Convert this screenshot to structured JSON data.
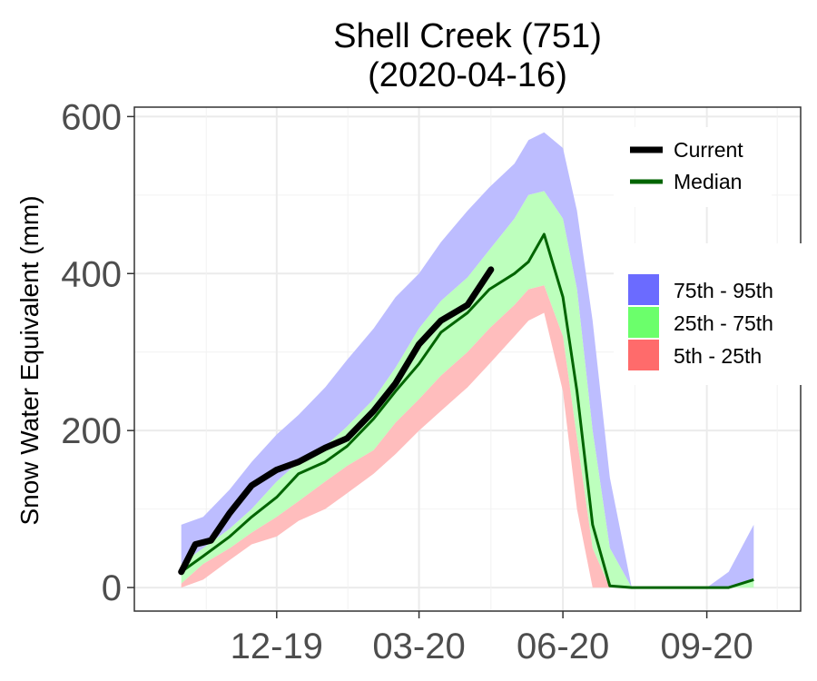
{
  "chart_data": {
    "type": "area",
    "title": "Shell Creek (751)",
    "subtitle": "(2020-04-16)",
    "xlabel": "",
    "ylabel": "Snow Water Equivalent (mm)",
    "x_ticks": [
      "12-19",
      "03-20",
      "06-20",
      "09-20"
    ],
    "y_ticks": [
      0,
      200,
      400,
      600
    ],
    "ylim": [
      -30,
      612
    ],
    "grid": true,
    "legend_lines": [
      {
        "name": "Current",
        "color": "#000000"
      },
      {
        "name": "Median",
        "color": "#006400"
      }
    ],
    "legend_bands": [
      {
        "name": "75th - 95th",
        "color": "#6b6bff"
      },
      {
        "name": "25th - 75th",
        "color": "#6bff6b"
      },
      {
        "name": "5th - 25th",
        "color": "#ff6b6b"
      }
    ],
    "x": [
      "2019-10-01",
      "2019-10-15",
      "2019-11-01",
      "2019-11-15",
      "2019-12-01",
      "2019-12-15",
      "2020-01-01",
      "2020-01-15",
      "2020-02-01",
      "2020-02-15",
      "2020-03-01",
      "2020-03-15",
      "2020-04-01",
      "2020-04-15",
      "2020-05-01",
      "2020-05-10",
      "2020-05-20",
      "2020-06-01",
      "2020-06-10",
      "2020-06-20",
      "2020-07-01",
      "2020-07-15",
      "2020-08-01",
      "2020-08-15",
      "2020-09-01",
      "2020-09-15",
      "2020-10-01"
    ],
    "series": [
      {
        "name": "95th",
        "values": [
          80,
          90,
          125,
          160,
          195,
          220,
          255,
          290,
          330,
          370,
          400,
          440,
          480,
          510,
          540,
          570,
          580,
          560,
          480,
          340,
          140,
          0,
          0,
          0,
          0,
          20,
          80
        ]
      },
      {
        "name": "75th",
        "values": [
          30,
          50,
          75,
          100,
          135,
          160,
          180,
          205,
          240,
          280,
          330,
          365,
          395,
          430,
          470,
          500,
          505,
          470,
          380,
          200,
          50,
          0,
          0,
          0,
          0,
          0,
          10
        ]
      },
      {
        "name": "Median",
        "values": [
          20,
          40,
          65,
          90,
          115,
          145,
          160,
          180,
          215,
          250,
          285,
          325,
          350,
          380,
          400,
          415,
          450,
          370,
          250,
          80,
          2,
          0,
          0,
          0,
          0,
          0,
          10
        ]
      },
      {
        "name": "25th",
        "values": [
          5,
          30,
          50,
          70,
          90,
          110,
          135,
          155,
          175,
          210,
          240,
          270,
          300,
          330,
          360,
          380,
          385,
          320,
          190,
          50,
          0,
          0,
          0,
          0,
          0,
          0,
          0
        ]
      },
      {
        "name": "5th",
        "values": [
          0,
          10,
          35,
          55,
          65,
          85,
          100,
          120,
          145,
          170,
          200,
          225,
          255,
          285,
          320,
          340,
          350,
          250,
          100,
          0,
          0,
          0,
          0,
          0,
          0,
          0,
          0
        ]
      },
      {
        "name": "Current",
        "x": [
          "2019-10-01",
          "2019-10-10",
          "2019-10-20",
          "2019-11-01",
          "2019-11-15",
          "2019-12-01",
          "2019-12-15",
          "2020-01-01",
          "2020-01-15",
          "2020-02-01",
          "2020-02-15",
          "2020-03-01",
          "2020-03-15",
          "2020-04-01",
          "2020-04-16"
        ],
        "values": [
          20,
          55,
          60,
          95,
          130,
          150,
          160,
          178,
          190,
          225,
          260,
          310,
          340,
          360,
          405
        ]
      }
    ]
  }
}
